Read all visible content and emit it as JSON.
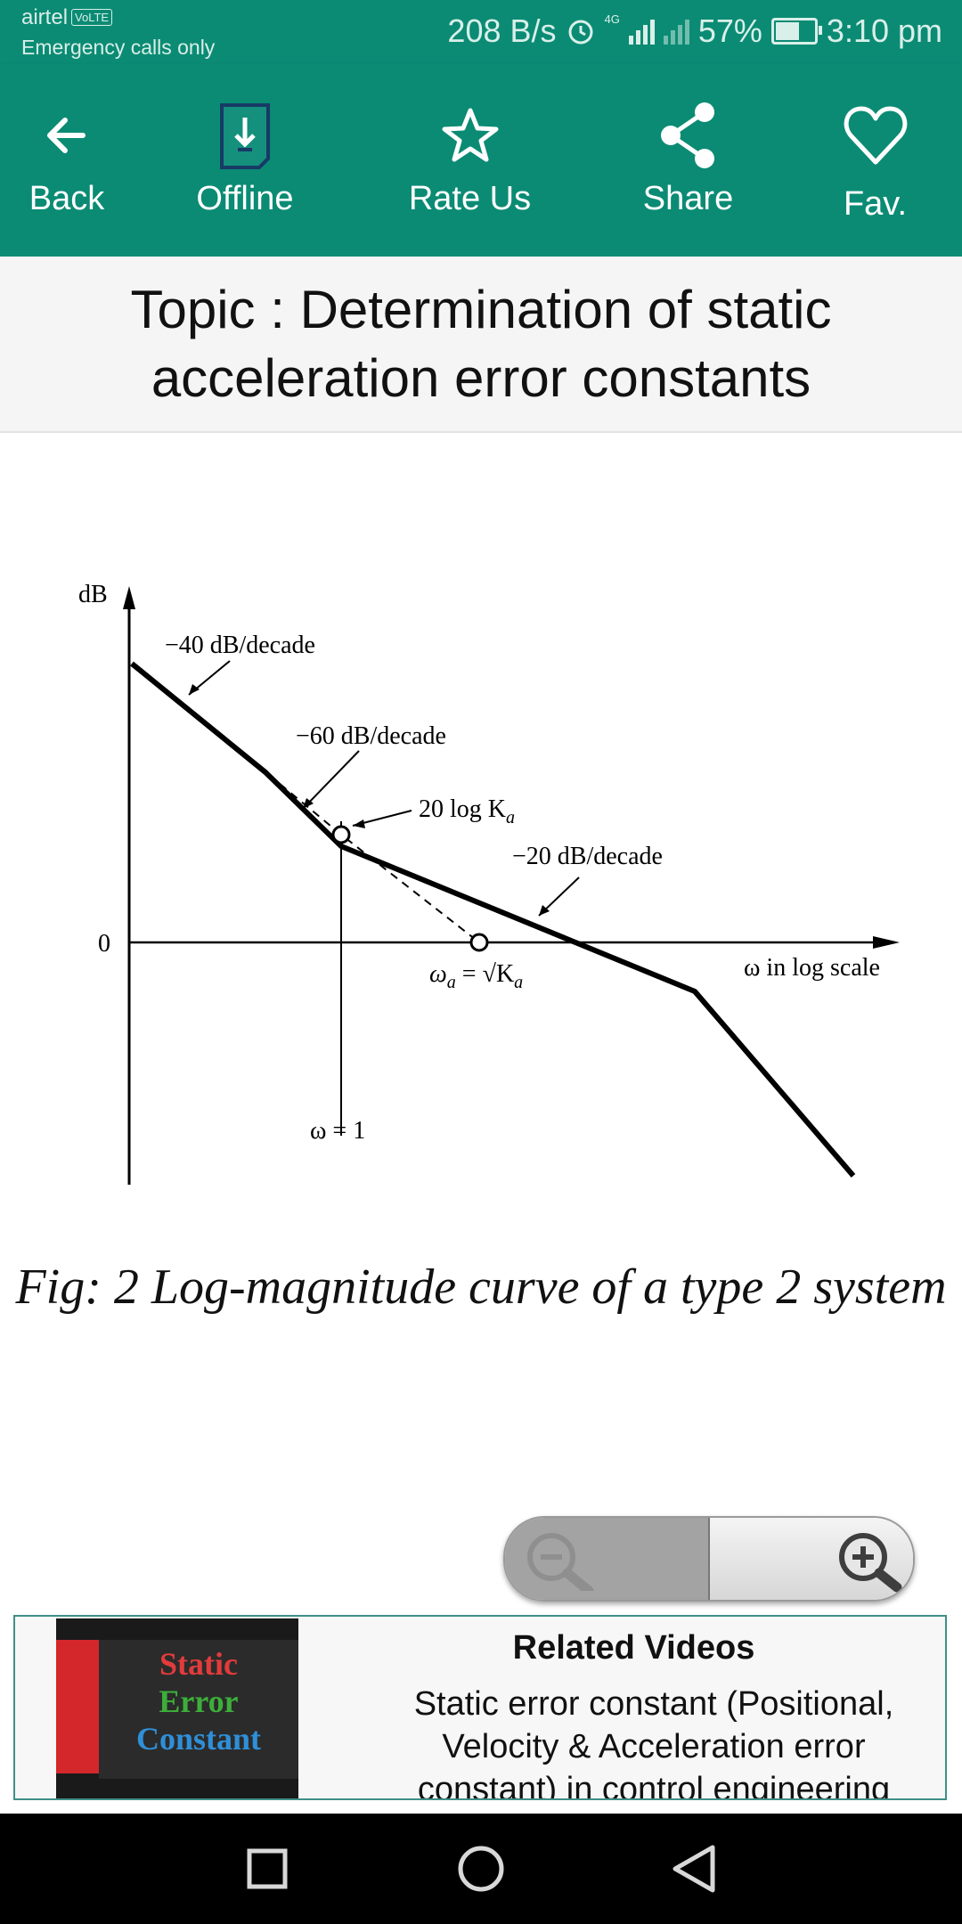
{
  "status_bar": {
    "carrier": "airtel",
    "volte": "VoLTE",
    "emergency": "Emergency calls only",
    "speed": "208 B/s",
    "network": "4G",
    "battery": "57%",
    "battery_level": 0.57,
    "time": "3:10 pm"
  },
  "toolbar": {
    "back": "Back",
    "offline": "Offline",
    "rate": "Rate Us",
    "share": "Share",
    "fav": "Fav."
  },
  "topic": "Topic : Determination of static acceleration error constants",
  "figure": {
    "y_label": "dB",
    "zero_label": "0",
    "slope_40": "−40 dB/decade",
    "slope_60": "−60 dB/decade",
    "log_ka": "20 log K",
    "log_ka_sub": "a",
    "slope_20": "−20 dB/decade",
    "omega_a": "ω",
    "omega_a_sub": "a",
    "omega_a_eq": " = √K",
    "omega_a_eq_sub": "a",
    "x_label": "ω in log scale",
    "omega_one": "ω = 1"
  },
  "caption": "Fig: 2 Log-magnitude curve of a type 2 system",
  "zoom": {
    "out_icon": "zoom-out-icon",
    "in_icon": "zoom-in-icon"
  },
  "related": {
    "title": "Related Videos",
    "description": "Static error constant (Positional, Velocity & Acceleration error constant) in control engineering",
    "thumb_lines": [
      "Static",
      "Error",
      "Constant"
    ]
  },
  "colors": {
    "toolbar": "#0b8b74",
    "related_border": "#3f8f86"
  }
}
